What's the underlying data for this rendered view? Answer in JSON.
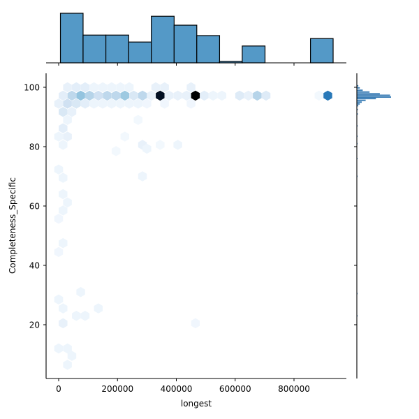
{
  "chart_data": {
    "type": "hexbin",
    "kind": "jointplot",
    "title": "",
    "xlabel": "longest",
    "ylabel": "Completeness_Specific",
    "xlim": [
      -45000,
      975000
    ],
    "ylim": [
      2,
      105
    ],
    "x_ticks": [
      0,
      200000,
      400000,
      600000,
      800000
    ],
    "x_tick_labels": [
      "0",
      "200000",
      "400000",
      "600000",
      "800000"
    ],
    "y_ticks": [
      20,
      40,
      60,
      80,
      100
    ],
    "y_tick_labels": [
      "20",
      "40",
      "60",
      "80",
      "100"
    ],
    "grid": false,
    "legend": null,
    "colormap": "Blues",
    "marginal_x_histogram": {
      "bin_edges": [
        6000,
        83000,
        160500,
        238000,
        315000,
        392500,
        469500,
        547000,
        624000,
        701500,
        779000,
        856000,
        933000
      ],
      "relative_counts": [
        1.0,
        0.56,
        0.56,
        0.42,
        0.94,
        0.76,
        0.55,
        0.03,
        0.34,
        0.0,
        0.0,
        0.49
      ],
      "color": "#5499c7"
    },
    "marginal_y_histogram": {
      "description": "dense spike near 95-100, sparse tail down to ~20",
      "bins": [
        {
          "y": 100.5,
          "w": 0.03
        },
        {
          "y": 99.8,
          "w": 0.06
        },
        {
          "y": 99.0,
          "w": 0.12
        },
        {
          "y": 98.4,
          "w": 0.26
        },
        {
          "y": 97.8,
          "w": 0.47
        },
        {
          "y": 97.3,
          "w": 0.68
        },
        {
          "y": 96.7,
          "w": 0.7
        },
        {
          "y": 96.2,
          "w": 0.39
        },
        {
          "y": 95.6,
          "w": 0.18
        },
        {
          "y": 95.0,
          "w": 0.1
        },
        {
          "y": 94.4,
          "w": 0.06
        },
        {
          "y": 93.8,
          "w": 0.03
        },
        {
          "y": 92.5,
          "w": 0.02
        },
        {
          "y": 91.0,
          "w": 0.02
        },
        {
          "y": 87.0,
          "w": 0.015
        },
        {
          "y": 83.5,
          "w": 0.01
        },
        {
          "y": 81.0,
          "w": 0.01
        },
        {
          "y": 76.0,
          "w": 0.01
        },
        {
          "y": 70.0,
          "w": 0.01
        },
        {
          "y": 30.5,
          "w": 0.01
        },
        {
          "y": 23.0,
          "w": 0.005
        }
      ],
      "color": "#3a7db5"
    },
    "hexbins": [
      {
        "x": 30000,
        "y": 100,
        "c": 0.06
      },
      {
        "x": 60000,
        "y": 100,
        "c": 0.08
      },
      {
        "x": 90000,
        "y": 100,
        "c": 0.08
      },
      {
        "x": 120000,
        "y": 100,
        "c": 0.04
      },
      {
        "x": 150000,
        "y": 100,
        "c": 0.04
      },
      {
        "x": 180000,
        "y": 100,
        "c": 0.04
      },
      {
        "x": 210000,
        "y": 100,
        "c": 0.04
      },
      {
        "x": 240000,
        "y": 100,
        "c": 0.04
      },
      {
        "x": 330000,
        "y": 100,
        "c": 0.06
      },
      {
        "x": 360000,
        "y": 100,
        "c": 0.06
      },
      {
        "x": 450000,
        "y": 100,
        "c": 0.06
      },
      {
        "x": 15000,
        "y": 97.2,
        "c": 0.08
      },
      {
        "x": 45000,
        "y": 97.2,
        "c": 0.22
      },
      {
        "x": 75000,
        "y": 97.2,
        "c": 0.32
      },
      {
        "x": 105000,
        "y": 97.2,
        "c": 0.24
      },
      {
        "x": 135000,
        "y": 97.2,
        "c": 0.16
      },
      {
        "x": 165000,
        "y": 97.2,
        "c": 0.22
      },
      {
        "x": 195000,
        "y": 97.2,
        "c": 0.22
      },
      {
        "x": 225000,
        "y": 97.2,
        "c": 0.3
      },
      {
        "x": 255000,
        "y": 97.2,
        "c": 0.12
      },
      {
        "x": 285000,
        "y": 97.2,
        "c": 0.22
      },
      {
        "x": 315000,
        "y": 97.2,
        "c": 0.06
      },
      {
        "x": 345000,
        "y": 97.2,
        "c": 0.92
      },
      {
        "x": 375000,
        "y": 97.2,
        "c": 0.06
      },
      {
        "x": 405000,
        "y": 97.2,
        "c": 0.06
      },
      {
        "x": 435000,
        "y": 97.2,
        "c": 0.06
      },
      {
        "x": 465000,
        "y": 97.2,
        "c": 1.0
      },
      {
        "x": 495000,
        "y": 97.2,
        "c": 0.08
      },
      {
        "x": 525000,
        "y": 97.2,
        "c": 0.04
      },
      {
        "x": 555000,
        "y": 97.2,
        "c": 0.04
      },
      {
        "x": 615000,
        "y": 97.2,
        "c": 0.1
      },
      {
        "x": 645000,
        "y": 97.2,
        "c": 0.06
      },
      {
        "x": 675000,
        "y": 97.2,
        "c": 0.24
      },
      {
        "x": 705000,
        "y": 97.2,
        "c": 0.1
      },
      {
        "x": 885000,
        "y": 97.2,
        "c": 0.02
      },
      {
        "x": 915000,
        "y": 97.2,
        "c": 0.58
      },
      {
        "x": 0,
        "y": 94.5,
        "c": 0.06
      },
      {
        "x": 30000,
        "y": 94.5,
        "c": 0.16
      },
      {
        "x": 60000,
        "y": 94.5,
        "c": 0.12
      },
      {
        "x": 90000,
        "y": 94.5,
        "c": 0.08
      },
      {
        "x": 120000,
        "y": 94.5,
        "c": 0.04
      },
      {
        "x": 150000,
        "y": 94.5,
        "c": 0.04
      },
      {
        "x": 180000,
        "y": 94.5,
        "c": 0.04
      },
      {
        "x": 210000,
        "y": 94.5,
        "c": 0.04
      },
      {
        "x": 240000,
        "y": 94.5,
        "c": 0.04
      },
      {
        "x": 270000,
        "y": 94.5,
        "c": 0.04
      },
      {
        "x": 300000,
        "y": 94.5,
        "c": 0.03
      },
      {
        "x": 360000,
        "y": 94.5,
        "c": 0.03
      },
      {
        "x": 450000,
        "y": 94.5,
        "c": 0.03
      },
      {
        "x": 15000,
        "y": 91.7,
        "c": 0.12
      },
      {
        "x": 45000,
        "y": 91.7,
        "c": 0.06
      },
      {
        "x": 15000,
        "y": 86.2,
        "c": 0.08
      },
      {
        "x": 30000,
        "y": 89.0,
        "c": 0.04
      },
      {
        "x": 0,
        "y": 83.4,
        "c": 0.04
      },
      {
        "x": 30000,
        "y": 83.4,
        "c": 0.06
      },
      {
        "x": 15000,
        "y": 80.6,
        "c": 0.04
      },
      {
        "x": 285000,
        "y": 80.6,
        "c": 0.06
      },
      {
        "x": 300000,
        "y": 79.3,
        "c": 0.04
      },
      {
        "x": 405000,
        "y": 80.6,
        "c": 0.04
      },
      {
        "x": 345000,
        "y": 80.6,
        "c": 0.02
      },
      {
        "x": 225000,
        "y": 83.4,
        "c": 0.02
      },
      {
        "x": 195000,
        "y": 78.5,
        "c": 0.02
      },
      {
        "x": 270000,
        "y": 89.0,
        "c": 0.02
      },
      {
        "x": 285000,
        "y": 70.0,
        "c": 0.04
      },
      {
        "x": 0,
        "y": 72.3,
        "c": 0.04
      },
      {
        "x": 15000,
        "y": 69.5,
        "c": 0.04
      },
      {
        "x": 15000,
        "y": 64.0,
        "c": 0.04
      },
      {
        "x": 30000,
        "y": 61.2,
        "c": 0.04
      },
      {
        "x": 15000,
        "y": 58.5,
        "c": 0.04
      },
      {
        "x": 0,
        "y": 55.7,
        "c": 0.03
      },
      {
        "x": 15000,
        "y": 47.5,
        "c": 0.04
      },
      {
        "x": 0,
        "y": 44.5,
        "c": 0.03
      },
      {
        "x": 75000,
        "y": 31.0,
        "c": 0.04
      },
      {
        "x": 0,
        "y": 28.5,
        "c": 0.04
      },
      {
        "x": 15000,
        "y": 25.5,
        "c": 0.04
      },
      {
        "x": 135000,
        "y": 25.5,
        "c": 0.04
      },
      {
        "x": 60000,
        "y": 23.0,
        "c": 0.04
      },
      {
        "x": 90000,
        "y": 23.0,
        "c": 0.04
      },
      {
        "x": 15000,
        "y": 20.5,
        "c": 0.06
      },
      {
        "x": 465000,
        "y": 20.5,
        "c": 0.03
      },
      {
        "x": 0,
        "y": 12.0,
        "c": 0.04
      },
      {
        "x": 30000,
        "y": 12.0,
        "c": 0.04
      },
      {
        "x": 45000,
        "y": 9.5,
        "c": 0.04
      },
      {
        "x": 30000,
        "y": 6.5,
        "c": 0.04
      }
    ]
  }
}
